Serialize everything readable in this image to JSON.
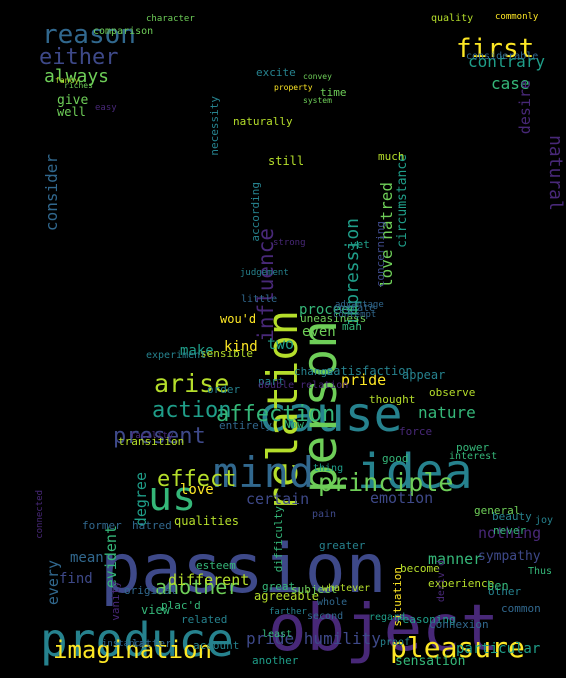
{
  "colors": {
    "background": "#000000",
    "palette": [
      "#fde725",
      "#b5de2b",
      "#6ece58",
      "#35b779",
      "#1f9e89",
      "#26828e",
      "#31688e",
      "#3e4989",
      "#482878",
      "#440154"
    ]
  },
  "words": [
    {
      "text": "passion"
    },
    {
      "text": "object"
    },
    {
      "text": "produce"
    },
    {
      "text": "cause"
    },
    {
      "text": "idea"
    },
    {
      "text": "person"
    },
    {
      "text": "relation"
    },
    {
      "text": "mind"
    },
    {
      "text": "us"
    },
    {
      "text": "pleasure"
    },
    {
      "text": "imagination"
    },
    {
      "text": "principle"
    },
    {
      "text": "effect"
    },
    {
      "text": "arise"
    },
    {
      "text": "affection"
    },
    {
      "text": "action"
    },
    {
      "text": "present"
    },
    {
      "text": "reason"
    },
    {
      "text": "first"
    },
    {
      "text": "either"
    },
    {
      "text": "influence"
    },
    {
      "text": "impression"
    },
    {
      "text": "another"
    },
    {
      "text": "pride humility"
    },
    {
      "text": "always"
    },
    {
      "text": "contrary"
    },
    {
      "text": "case"
    },
    {
      "text": "natural"
    },
    {
      "text": "consider"
    },
    {
      "text": "love hatred"
    },
    {
      "text": "circumstance"
    },
    {
      "text": "nature"
    },
    {
      "text": "emotion"
    },
    {
      "text": "certain"
    },
    {
      "text": "different"
    },
    {
      "text": "manner"
    },
    {
      "text": "sympathy"
    },
    {
      "text": "nothing"
    },
    {
      "text": "evident"
    },
    {
      "text": "degree"
    },
    {
      "text": "every"
    },
    {
      "text": "find"
    },
    {
      "text": "mean"
    },
    {
      "text": "love"
    },
    {
      "text": "pride"
    },
    {
      "text": "two"
    },
    {
      "text": "kind"
    },
    {
      "text": "make"
    },
    {
      "text": "even"
    },
    {
      "text": "proceed"
    },
    {
      "text": "give"
    },
    {
      "text": "well"
    },
    {
      "text": "time"
    },
    {
      "text": "excite"
    },
    {
      "text": "desire"
    },
    {
      "text": "much"
    },
    {
      "text": "yet"
    },
    {
      "text": "sensation"
    },
    {
      "text": "particular"
    },
    {
      "text": "view"
    },
    {
      "text": "qualities"
    },
    {
      "text": "hatred"
    },
    {
      "text": "transition"
    },
    {
      "text": "thought"
    },
    {
      "text": "observe"
    },
    {
      "text": "beauty"
    },
    {
      "text": "never"
    },
    {
      "text": "general"
    },
    {
      "text": "good"
    },
    {
      "text": "appear"
    },
    {
      "text": "satisfaction"
    },
    {
      "text": "change"
    },
    {
      "text": "part"
    },
    {
      "text": "order"
    },
    {
      "text": "wou'd"
    },
    {
      "text": "man"
    },
    {
      "text": "still"
    },
    {
      "text": "naturally"
    },
    {
      "text": "necessity"
    },
    {
      "text": "according"
    },
    {
      "text": "strong"
    },
    {
      "text": "agreeable"
    },
    {
      "text": "related"
    },
    {
      "text": "account"
    },
    {
      "text": "latter"
    },
    {
      "text": "original"
    },
    {
      "text": "great"
    },
    {
      "text": "subject"
    },
    {
      "text": "become"
    },
    {
      "text": "experience"
    },
    {
      "text": "reasoning"
    },
    {
      "text": "situation"
    },
    {
      "text": "greater"
    },
    {
      "text": "difficulty"
    },
    {
      "text": "esteem"
    },
    {
      "text": "former"
    },
    {
      "text": "other"
    },
    {
      "text": "common"
    },
    {
      "text": "quality"
    },
    {
      "text": "considerable"
    },
    {
      "text": "comparison"
    },
    {
      "text": "character"
    },
    {
      "text": "fancy"
    },
    {
      "text": "riches"
    },
    {
      "text": "system"
    },
    {
      "text": "property"
    },
    {
      "text": "convey"
    },
    {
      "text": "sensible"
    },
    {
      "text": "little"
    },
    {
      "text": "uneasiness"
    },
    {
      "text": "operate"
    },
    {
      "text": "judgement"
    },
    {
      "text": "entirely"
    },
    {
      "text": "force"
    },
    {
      "text": "power"
    },
    {
      "text": "interest"
    },
    {
      "text": "Now"
    },
    {
      "text": "thing"
    },
    {
      "text": "pain"
    },
    {
      "text": "whatever"
    },
    {
      "text": "concerning"
    },
    {
      "text": "Thus"
    },
    {
      "text": "ben"
    },
    {
      "text": "connexion"
    },
    {
      "text": "deriv'd"
    },
    {
      "text": "advantage"
    },
    {
      "text": "experiment"
    },
    {
      "text": "facility"
    },
    {
      "text": "double relation"
    },
    {
      "text": "vanity"
    },
    {
      "text": "regard"
    },
    {
      "text": "proof"
    },
    {
      "text": "whole"
    },
    {
      "text": "second"
    },
    {
      "text": "least"
    },
    {
      "text": "instance"
    },
    {
      "text": "plac'd"
    },
    {
      "text": "farther"
    },
    {
      "text": "contempt"
    },
    {
      "text": "another"
    },
    {
      "text": "easy"
    },
    {
      "text": "commonly"
    },
    {
      "text": "joy"
    },
    {
      "text": "connected"
    }
  ]
}
